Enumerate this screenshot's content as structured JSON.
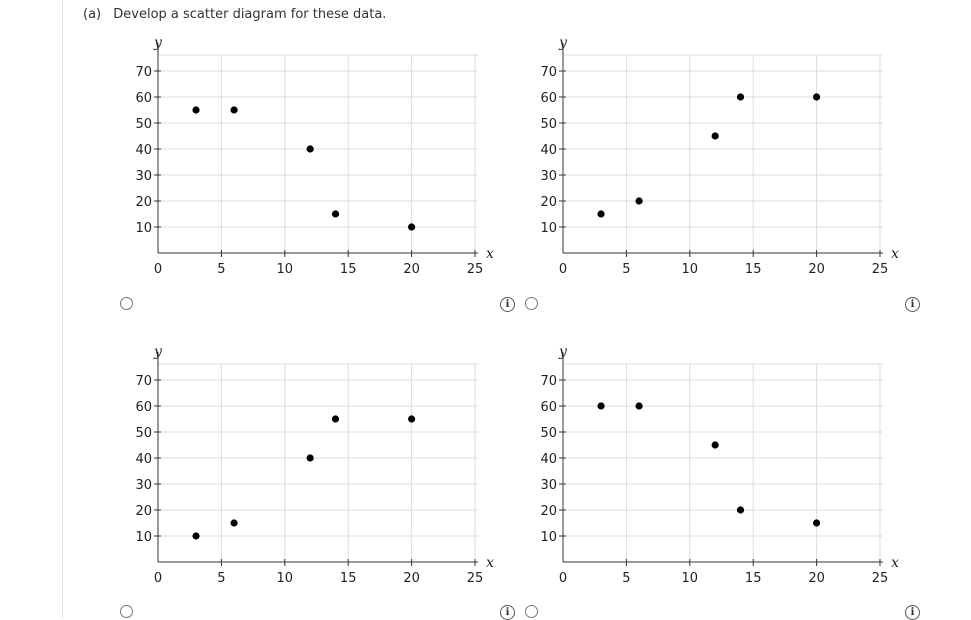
{
  "question": {
    "part_label": "(a)",
    "prompt": "Develop a scatter diagram for these data."
  },
  "chart_data": [
    {
      "type": "scatter",
      "title": "",
      "xlabel": "x",
      "ylabel": "y",
      "xlim": [
        0,
        25
      ],
      "ylim": [
        0,
        70
      ],
      "x_ticks": [
        0,
        5,
        10,
        15,
        20,
        25
      ],
      "y_ticks": [
        10,
        20,
        30,
        40,
        50,
        60,
        70
      ],
      "grid": true,
      "points": [
        {
          "x": 3,
          "y": 55
        },
        {
          "x": 6,
          "y": 55
        },
        {
          "x": 12,
          "y": 40
        },
        {
          "x": 14,
          "y": 15
        },
        {
          "x": 20,
          "y": 10
        }
      ]
    },
    {
      "type": "scatter",
      "title": "",
      "xlabel": "x",
      "ylabel": "y",
      "xlim": [
        0,
        25
      ],
      "ylim": [
        0,
        70
      ],
      "x_ticks": [
        0,
        5,
        10,
        15,
        20,
        25
      ],
      "y_ticks": [
        10,
        20,
        30,
        40,
        50,
        60,
        70
      ],
      "grid": true,
      "points": [
        {
          "x": 3,
          "y": 15
        },
        {
          "x": 6,
          "y": 20
        },
        {
          "x": 12,
          "y": 45
        },
        {
          "x": 14,
          "y": 60
        },
        {
          "x": 20,
          "y": 60
        }
      ]
    },
    {
      "type": "scatter",
      "title": "",
      "xlabel": "x",
      "ylabel": "y",
      "xlim": [
        0,
        25
      ],
      "ylim": [
        0,
        70
      ],
      "x_ticks": [
        0,
        5,
        10,
        15,
        20,
        25
      ],
      "y_ticks": [
        10,
        20,
        30,
        40,
        50,
        60,
        70
      ],
      "grid": true,
      "points": [
        {
          "x": 3,
          "y": 10
        },
        {
          "x": 6,
          "y": 15
        },
        {
          "x": 12,
          "y": 40
        },
        {
          "x": 14,
          "y": 55
        },
        {
          "x": 20,
          "y": 55
        }
      ]
    },
    {
      "type": "scatter",
      "title": "",
      "xlabel": "x",
      "ylabel": "y",
      "xlim": [
        0,
        25
      ],
      "ylim": [
        0,
        70
      ],
      "x_ticks": [
        0,
        5,
        10,
        15,
        20,
        25
      ],
      "y_ticks": [
        10,
        20,
        30,
        40,
        50,
        60,
        70
      ],
      "grid": true,
      "points": [
        {
          "x": 3,
          "y": 60
        },
        {
          "x": 6,
          "y": 60
        },
        {
          "x": 12,
          "y": 45
        },
        {
          "x": 14,
          "y": 20
        },
        {
          "x": 20,
          "y": 15
        }
      ]
    }
  ],
  "info_icon": {
    "glyph": "i"
  }
}
